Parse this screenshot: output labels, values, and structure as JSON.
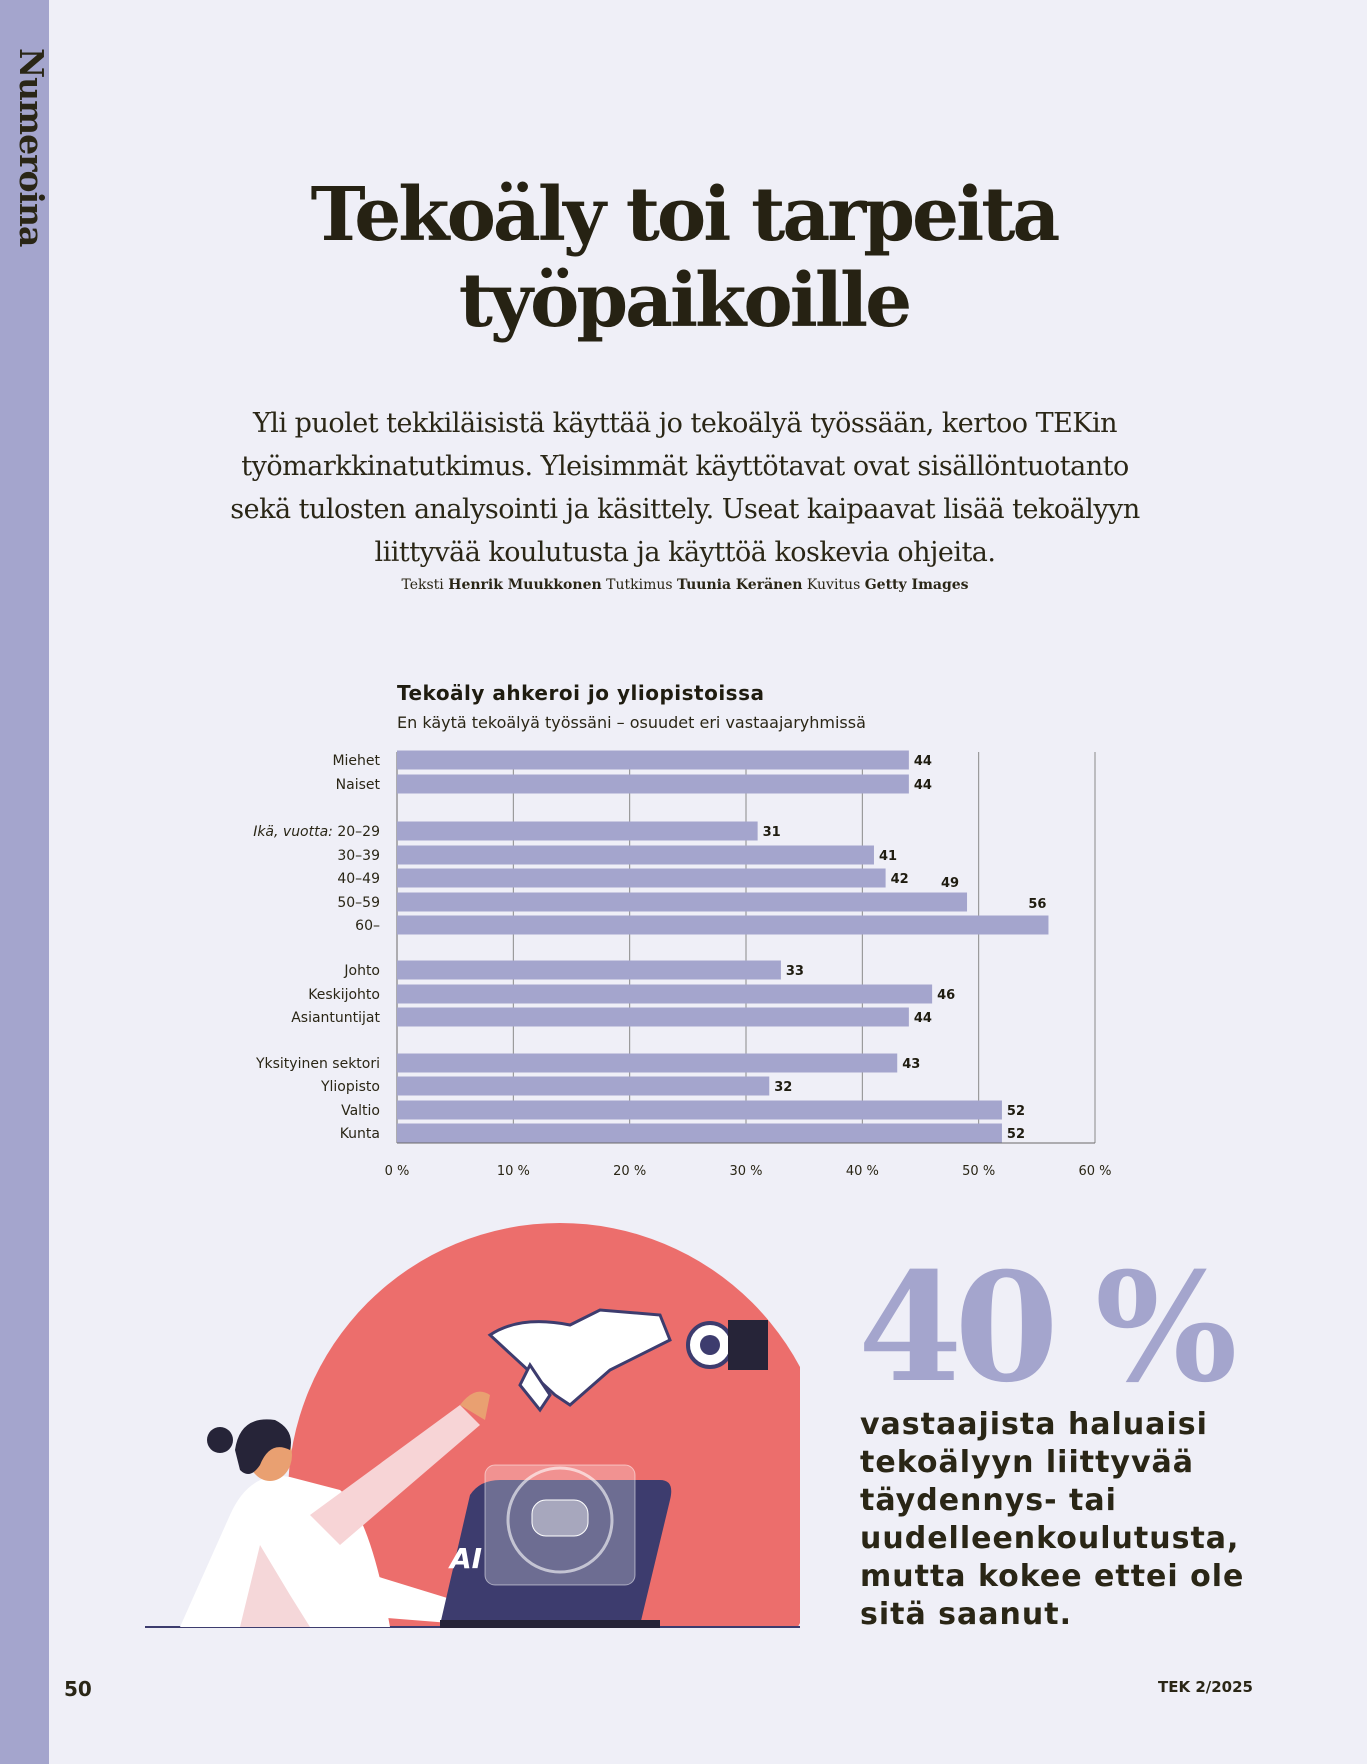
{
  "section_label": "Numeroina",
  "title": "Tekoäly toi tarpeita työpaikoille",
  "lead": "Yli puolet tekkiläisistä käyttää jo tekoälyä työssään, kertoo TEKin työmarkkinatutkimus. Yleisimmät käyttötavat ovat sisällöntuotanto sekä tulosten analysointi ja käsittely. Useat kaipaavat lisää tekoälyyn liittyvää koulutusta ja käyttöä koskevia ohjeita.",
  "credits": {
    "text_label": "Teksti",
    "text_name": "Henrik Muukkonen",
    "research_label": "Tutkimus",
    "research_name": "Tuunia Keränen",
    "images_label": "Kuvitus",
    "images_name": "Getty Images"
  },
  "chart_data": {
    "type": "bar",
    "orientation": "horizontal",
    "title": "Tekoäly ahkeroi jo yliopistoissa",
    "subtitle": "En käytä tekoälyä työssäni – osuudet eri vastaajaryhmissä",
    "group_label": "Ikä, vuotta:",
    "categories": [
      "Miehet",
      "Naiset",
      "20–29",
      "30–39",
      "40–49",
      "50–59",
      "60–",
      "Johto",
      "Keskijohto",
      "Asiantuntijat",
      "Yksityinen sektori",
      "Yliopisto",
      "Valtio",
      "Kunta"
    ],
    "values": [
      44,
      44,
      31,
      41,
      42,
      49,
      56,
      33,
      46,
      44,
      43,
      32,
      52,
      52
    ],
    "value_labels": [
      "44",
      "44",
      "31",
      "41",
      "42",
      "49",
      "56",
      "33",
      "46",
      "44",
      "43",
      "32",
      "52",
      "52"
    ],
    "xlim": [
      0,
      60
    ],
    "x_ticks": [
      "0 %",
      "10 %",
      "20 %",
      "30 %",
      "40 %",
      "50 %",
      "60 %"
    ],
    "grid": true,
    "bar_color": "#a4a5cd"
  },
  "stat": {
    "value": "40 %",
    "caption": "vastaajista haluaisi tekoälyyn liittyvää täydennys- tai uudelleenkoulutusta, mutta kokee ettei ole sitä saanut."
  },
  "illustration": {
    "screen_text": "AI",
    "circle_color": "#ec6e6c",
    "laptop_color": "#3d3c6e"
  },
  "footer": {
    "page_number": "50",
    "issue": "TEK 2/2025"
  }
}
